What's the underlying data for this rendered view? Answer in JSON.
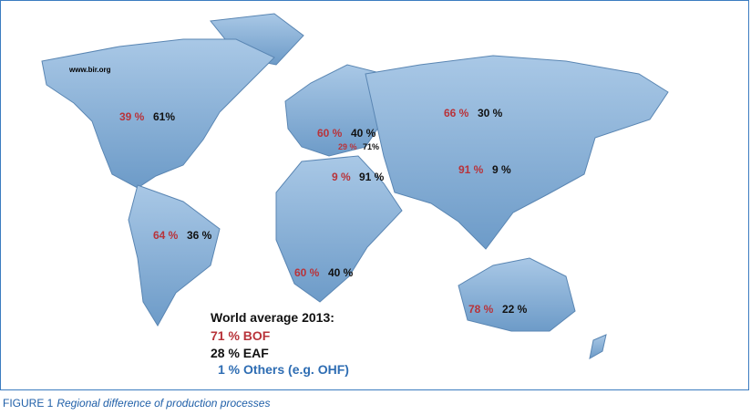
{
  "source": "www.bir.org",
  "regions": [
    {
      "bof": "39 %",
      "eaf": "61%"
    },
    {
      "bof": "60 %",
      "eaf": "40 %"
    },
    {
      "bof": "29 %",
      "eaf": "71%"
    },
    {
      "bof": "9 %",
      "eaf": "91 %"
    },
    {
      "bof": "66 %",
      "eaf": "30 %"
    },
    {
      "bof": "91 %",
      "eaf": "9 %"
    },
    {
      "bof": "64 %",
      "eaf": "36 %"
    },
    {
      "bof": "60 %",
      "eaf": "40 %"
    },
    {
      "bof": "78 %",
      "eaf": "22 %"
    }
  ],
  "legend": {
    "title": "World average 2013:",
    "bof": "71 % BOF",
    "eaf": "28 % EAF",
    "others": "1 % Others (e.g. OHF)"
  },
  "caption": {
    "label": "FIGURE 1",
    "text": "Regional difference of production processes"
  }
}
